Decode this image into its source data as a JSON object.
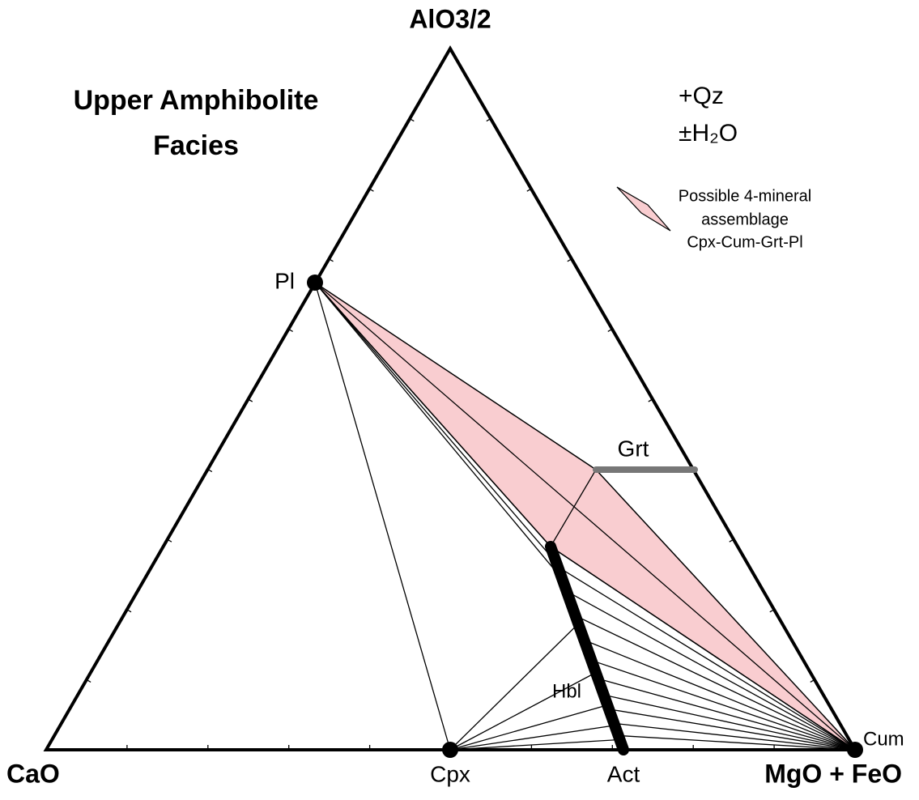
{
  "header": {
    "title_lines": [
      "Upper Amphibolite",
      "Facies"
    ]
  },
  "vertices": {
    "top": "AlO3/2",
    "left": "CaO",
    "right": "MgO + FeO"
  },
  "conditions": [
    "+Qz",
    "±H₂O"
  ],
  "legend": {
    "lines": [
      "Possible 4-mineral",
      "assemblage",
      "Cpx-Cum-Grt-Pl"
    ]
  },
  "minerals": {
    "pl": "Pl",
    "grt": "Grt",
    "hbl": "Hbl",
    "cpx": "Cpx",
    "act": "Act",
    "cum": "Cum"
  }
}
